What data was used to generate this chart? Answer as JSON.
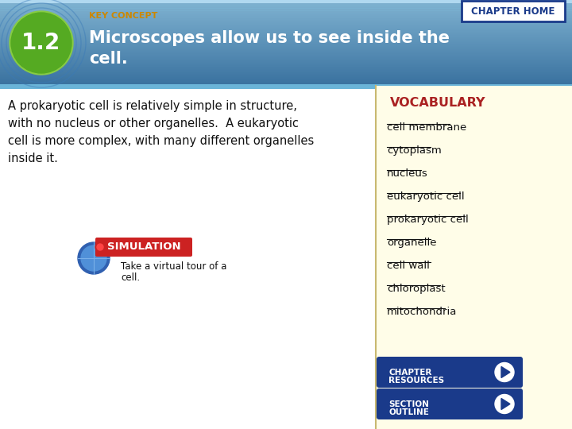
{
  "body_bg_color": "#ffffff",
  "right_panel_bg": "#fffde8",
  "right_panel_border": "#c8b870",
  "number_text": "1.2",
  "key_concept_label": "KEY CONCEPT",
  "key_concept_color": "#cc8800",
  "title_text_line1": "Microscopes allow us to see inside the",
  "title_text_line2": "cell.",
  "title_color": "#ffffff",
  "chapter_home_text": "CHAPTER HOME",
  "chapter_home_bg": "#ffffff",
  "chapter_home_text_color": "#1a3a8a",
  "chapter_home_border": "#1a3a8a",
  "body_text_lines": [
    "A prokaryotic cell is relatively simple in structure,",
    "with no nucleus or other organelles.  A eukaryotic",
    "cell is more complex, with many different organelles",
    "inside it."
  ],
  "body_text_color": "#111111",
  "vocabulary_label": "VOCABULARY",
  "vocabulary_label_color": "#aa2222",
  "vocab_items": [
    "cell membrane",
    "cytoplasm",
    "nucleus",
    "eukaryotic cell",
    "prokaryotic cell",
    "organelle",
    "cell wall",
    "chloroplast",
    "mitochondria"
  ],
  "vocab_text_color": "#111111",
  "simulation_label": "SIMULATION",
  "simulation_bg": "#cc2222",
  "simulation_text_color": "#ffffff",
  "simulation_caption_line1": "Take a virtual tour of a",
  "simulation_caption_line2": "cell.",
  "btn_bg": "#1a3a8a",
  "btn_text_color": "#ffffff",
  "btn1_line1": "CHAPTER",
  "btn1_line2": "RESOURCES",
  "btn2_line1": "SECTION",
  "btn2_line2": "OUTLINE"
}
